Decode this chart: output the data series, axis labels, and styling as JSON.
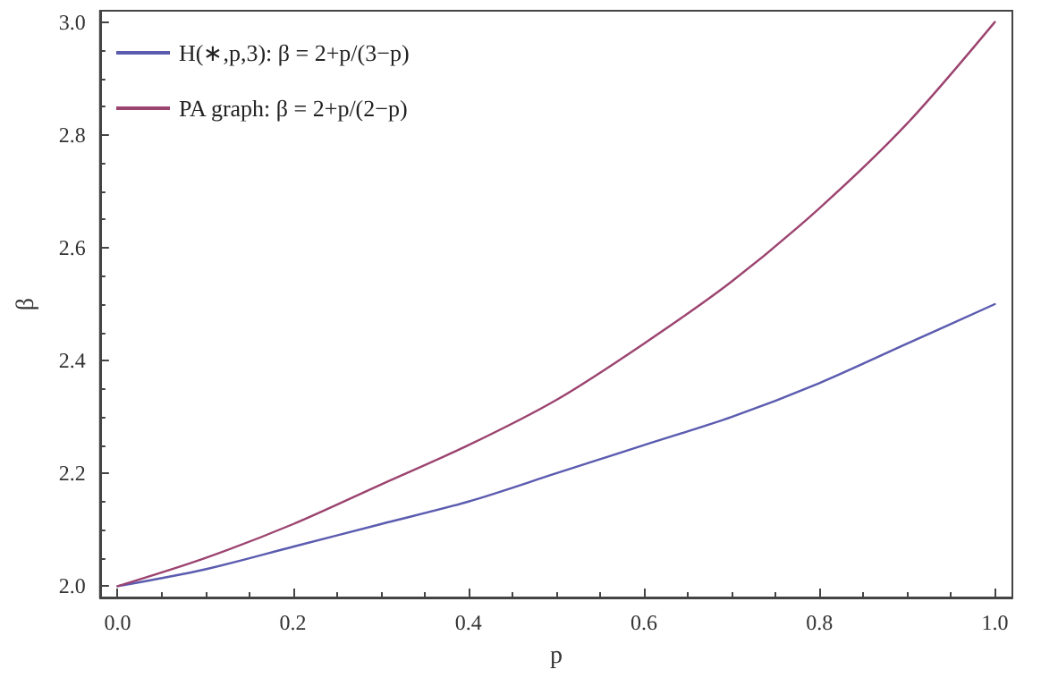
{
  "chart_data": {
    "type": "line",
    "xlabel": "p",
    "ylabel": "β",
    "x": [
      0,
      0.1,
      0.2,
      0.3,
      0.4,
      0.5,
      0.6,
      0.7,
      0.8,
      0.9,
      1.0
    ],
    "series": [
      {
        "name": "H(∗,p,3): β = 2+p/(3−p)",
        "color": "#5b5bb0",
        "values": [
          2.0,
          2.03,
          2.07,
          2.11,
          2.15,
          2.2,
          2.25,
          2.3,
          2.36,
          2.43,
          2.5
        ]
      },
      {
        "name": "PA graph: β = 2+p/(2−p)",
        "color": "#9c4470",
        "values": [
          2.0,
          2.05,
          2.11,
          2.18,
          2.25,
          2.33,
          2.43,
          2.54,
          2.67,
          2.82,
          3.0
        ]
      }
    ],
    "xlim": [
      -0.02,
      1.02
    ],
    "xticks": [
      {
        "value": 0,
        "label": "0.0"
      },
      {
        "value": 0.2,
        "label": "0.2"
      },
      {
        "value": 0.4,
        "label": "0.4"
      },
      {
        "value": 0.6,
        "label": "0.6"
      },
      {
        "value": 0.8,
        "label": "0.8"
      },
      {
        "value": 1,
        "label": "1.0"
      }
    ],
    "ylim": [
      1.98,
      3.02
    ],
    "yticks": [
      {
        "value": 2,
        "label": "2.0"
      },
      {
        "value": 2.2,
        "label": "2.2"
      },
      {
        "value": 2.4,
        "label": "2.4"
      },
      {
        "value": 2.6,
        "label": "2.6"
      },
      {
        "value": 2.8,
        "label": "2.8"
      },
      {
        "value": 3,
        "label": "3.0"
      }
    ],
    "legend": "top left",
    "grid": false,
    "marker": "none",
    "line_style": "solid"
  }
}
